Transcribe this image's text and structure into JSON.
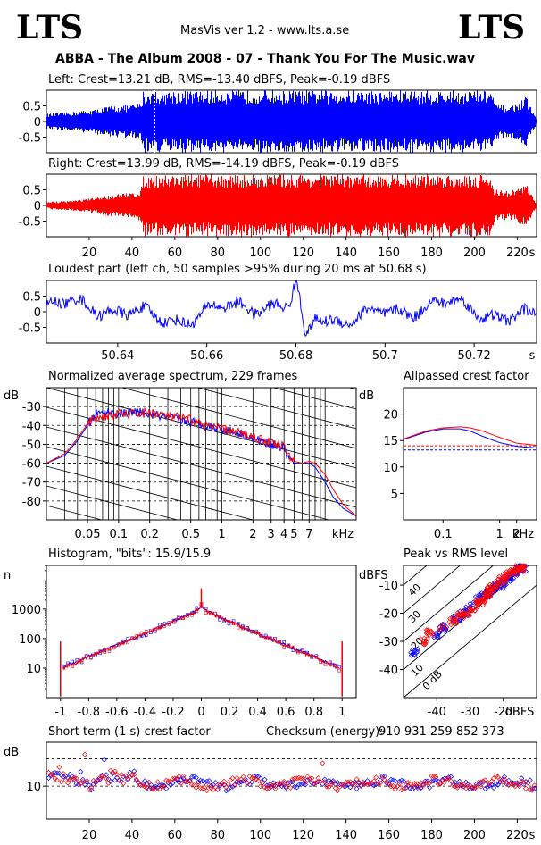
{
  "header": {
    "brand_left": "LTS",
    "brand_right": "LTS",
    "app_name": "MasVis ver 1.2 - www.lts.a.se",
    "track_title": "ABBA - The Album 2008 - 07 - Thank You For The Music.wav"
  },
  "colors": {
    "left": "#0000ff",
    "right": "#ff0000",
    "axes": "#000000"
  },
  "chart_data": [
    {
      "id": "waveform-left",
      "type": "area",
      "title": "Left: Crest=13.21 dB, RMS=-13.40 dBFS, Peak=-0.19 dBFS",
      "yticks": [
        "0.5",
        "0",
        "-0.5"
      ],
      "ylim": [
        -1,
        1
      ],
      "xlim": [
        0,
        229
      ],
      "envelope_x": [
        0,
        10,
        20,
        30,
        40,
        44,
        45,
        46,
        50,
        60,
        80,
        100,
        120,
        140,
        160,
        180,
        200,
        208,
        209,
        212,
        216,
        220,
        224,
        229
      ],
      "envelope_amp": [
        0.25,
        0.3,
        0.38,
        0.5,
        0.55,
        0.6,
        1.0,
        1.0,
        1.0,
        1.0,
        1.0,
        1.0,
        1.0,
        1.0,
        1.0,
        1.0,
        1.0,
        1.0,
        0.6,
        0.55,
        0.5,
        0.6,
        0.8,
        0.05
      ]
    },
    {
      "id": "waveform-right",
      "type": "area",
      "title": "Right: Crest=13.99 dB, RMS=-14.19 dBFS, Peak=-0.19 dBFS",
      "yticks": [
        "0.5",
        "0",
        "-0.5"
      ],
      "xticks": [
        "20",
        "40",
        "60",
        "80",
        "100",
        "120",
        "140",
        "160",
        "180",
        "200",
        "220"
      ],
      "xunit": "s",
      "ylim": [
        -1,
        1
      ],
      "xlim": [
        0,
        229
      ],
      "envelope_x": [
        0,
        10,
        20,
        30,
        40,
        44,
        45,
        46,
        50,
        60,
        80,
        100,
        120,
        140,
        160,
        180,
        200,
        208,
        209,
        212,
        216,
        220,
        224,
        229
      ],
      "envelope_amp": [
        0.12,
        0.15,
        0.22,
        0.35,
        0.42,
        0.5,
        1.0,
        1.0,
        1.0,
        1.0,
        1.0,
        1.0,
        1.0,
        1.0,
        1.0,
        1.0,
        1.0,
        1.0,
        0.55,
        0.5,
        0.45,
        0.55,
        0.7,
        0.04
      ]
    },
    {
      "id": "loudest-part",
      "type": "line",
      "title": "Loudest part (left  ch, 50 samples >95% during 20 ms at 50.68 s)",
      "yticks": [
        "0.5",
        "0",
        "-0.5"
      ],
      "xticks": [
        "50.64",
        "50.66",
        "50.68",
        "50.7",
        "50.72"
      ],
      "xunit": "s",
      "xlim": [
        50.624,
        50.734
      ],
      "ylim": [
        -1,
        1
      ]
    },
    {
      "id": "spectrum",
      "type": "line",
      "title": "Normalized average spectrum, 229 frames",
      "ylabel": "dB",
      "yticks": [
        "-30",
        "-40",
        "-50",
        "-60",
        "-70",
        "-80"
      ],
      "xticks": [
        "0.05",
        "0.1",
        "0.2",
        "0.5",
        "1",
        "2",
        "3",
        "4",
        "5",
        "7"
      ],
      "xunit": "kHz",
      "xlim": [
        0.02,
        20
      ],
      "ylim": [
        -90,
        -20
      ],
      "x": [
        0.02,
        0.03,
        0.04,
        0.05,
        0.06,
        0.08,
        0.1,
        0.15,
        0.2,
        0.3,
        0.5,
        0.7,
        1,
        1.5,
        2,
        3,
        4,
        4.5,
        5,
        6,
        7,
        8,
        10,
        12,
        15,
        20
      ],
      "series": [
        {
          "name": "left",
          "values": [
            -60,
            -56,
            -48,
            -40,
            -34,
            -33,
            -34,
            -33,
            -34,
            -36,
            -38,
            -40,
            -42,
            -44,
            -47,
            -50,
            -52,
            -58,
            -60,
            -60,
            -60,
            -62,
            -70,
            -78,
            -84,
            -88
          ]
        },
        {
          "name": "right",
          "values": [
            -60,
            -55,
            -47,
            -39,
            -36,
            -35,
            -34,
            -34,
            -33,
            -35,
            -37,
            -40,
            -42,
            -44,
            -46,
            -49,
            -51,
            -57,
            -59,
            -60,
            -59,
            -60,
            -66,
            -74,
            -82,
            -88
          ]
        }
      ]
    },
    {
      "id": "allpassed-crest",
      "type": "line",
      "title": "Allpassed crest factor",
      "ylabel": "dB",
      "yticks": [
        "20",
        "15",
        "10",
        "5"
      ],
      "xticks": [
        "0.1",
        "1",
        "2"
      ],
      "xunit": "kHz",
      "xlim": [
        0.02,
        4.5
      ],
      "ylim": [
        0,
        25
      ],
      "x": [
        0.02,
        0.05,
        0.1,
        0.2,
        0.3,
        0.5,
        1,
        2,
        4.5
      ],
      "series": [
        {
          "name": "left",
          "values": [
            15.2,
            16.6,
            17.2,
            17.2,
            16.8,
            15.8,
            14.6,
            13.9,
            13.6
          ]
        },
        {
          "name": "right",
          "values": [
            15.3,
            16.8,
            17.4,
            17.6,
            17.4,
            16.8,
            15.6,
            14.5,
            14.1
          ]
        }
      ],
      "reference_lines": [
        {
          "name": "left",
          "value": 13.21
        },
        {
          "name": "right",
          "value": 13.99
        }
      ]
    },
    {
      "id": "histogram",
      "type": "line",
      "title": "Histogram, \"bits\": 15.9/15.9",
      "ylabel": "n",
      "yticks": [
        "1000",
        "100",
        "10"
      ],
      "xticks": [
        "-1",
        "-0.8",
        "-0.6",
        "-0.4",
        "-0.2",
        "0",
        "0.2",
        "0.4",
        "0.6",
        "0.8",
        "1"
      ],
      "xlim": [
        -1.1,
        1.1
      ],
      "ylim": [
        1,
        30000
      ],
      "x": [
        -1.0,
        -0.98,
        -0.9,
        -0.8,
        -0.6,
        -0.4,
        -0.2,
        -0.05,
        0,
        0.05,
        0.2,
        0.4,
        0.6,
        0.8,
        0.9,
        0.98,
        1.0
      ],
      "series": [
        {
          "name": "left",
          "values": [
            60,
            12,
            15,
            25,
            60,
            150,
            380,
            800,
            1200,
            800,
            380,
            150,
            60,
            25,
            15,
            12,
            60
          ]
        },
        {
          "name": "right",
          "values": [
            80,
            10,
            14,
            24,
            58,
            145,
            370,
            790,
            1250,
            790,
            370,
            145,
            58,
            24,
            14,
            10,
            80
          ]
        }
      ]
    },
    {
      "id": "peak-vs-rms",
      "type": "scatter",
      "title": "Peak vs RMS level",
      "ylabel": "dBFS",
      "xlabel": "dBFS",
      "yticks": [
        "-10",
        "-20",
        "-30",
        "-40"
      ],
      "xticks": [
        "-40",
        "-30",
        "-20"
      ],
      "diagonal_labels": [
        "40",
        "30",
        "20",
        "10",
        "0 dB"
      ],
      "xlim": [
        -50,
        -10
      ],
      "ylim": [
        -50,
        -3
      ],
      "series": [
        {
          "name": "left",
          "x": [
            -47,
            -40,
            -38,
            -34,
            -32,
            -30,
            -28,
            -26,
            -25,
            -24,
            -23,
            -22,
            -21,
            -20,
            -19,
            -18,
            -17,
            -16,
            -15,
            -14
          ],
          "y": [
            -34,
            -28,
            -25,
            -22,
            -20,
            -17,
            -15,
            -14,
            -13,
            -12,
            -11,
            -10,
            -10,
            -9,
            -8,
            -7,
            -6,
            -5,
            -4,
            -4
          ]
        },
        {
          "name": "right",
          "x": [
            -44,
            -42,
            -38,
            -35,
            -33,
            -31,
            -29,
            -27,
            -26,
            -25,
            -24,
            -23,
            -22,
            -21,
            -20,
            -19,
            -18,
            -17,
            -16,
            -15,
            -14
          ],
          "y": [
            -30,
            -27,
            -25,
            -23,
            -21,
            -20,
            -18,
            -16,
            -15,
            -13,
            -12,
            -11,
            -10,
            -9,
            -8,
            -7,
            -6,
            -5,
            -5,
            -4,
            -3
          ]
        }
      ]
    },
    {
      "id": "short-term-crest",
      "type": "scatter",
      "title": "Short term (1 s) crest factor",
      "checksum_label": "Checksum (energy):",
      "checksum_value": "910 931 259 852 373",
      "ylabel": "dB",
      "yticks": [
        "10"
      ],
      "xticks": [
        "20",
        "40",
        "60",
        "80",
        "100",
        "120",
        "140",
        "160",
        "180",
        "200",
        "220"
      ],
      "xunit": "s",
      "xlim": [
        0,
        229
      ],
      "ylim": [
        4,
        18
      ],
      "reference_lines": [
        {
          "value": 15
        },
        {
          "value": 10
        }
      ]
    }
  ]
}
